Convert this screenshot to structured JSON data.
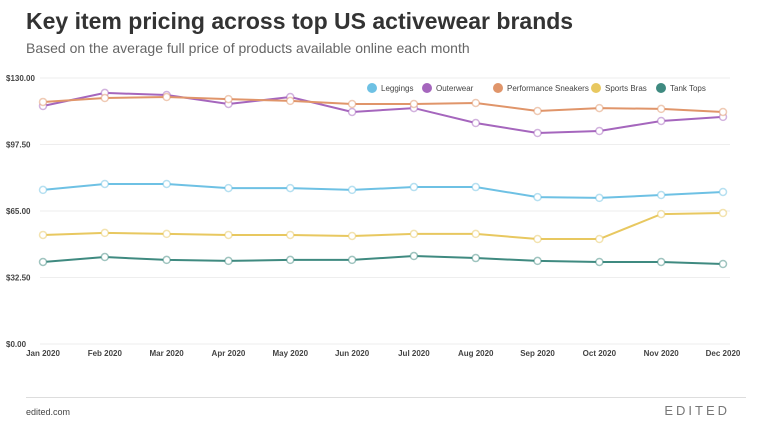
{
  "title": "Key item pricing across top US activewear brands",
  "subtitle": "Based on the average full price of products available online each month",
  "footer": {
    "source": "edited.com",
    "logo": "EDITED"
  },
  "chart_data": {
    "type": "line",
    "categories": [
      "Jan 2020",
      "Feb 2020",
      "Mar 2020",
      "Apr 2020",
      "May 2020",
      "Jun 2020",
      "Jul 2020",
      "Aug 2020",
      "Sep 2020",
      "Oct 2020",
      "Nov 2020",
      "Dec 2020"
    ],
    "yticks": [
      "$0.00",
      "$32.50",
      "$65.00",
      "$97.50",
      "$130.00"
    ],
    "ylim": [
      0,
      130
    ],
    "grid": true,
    "legend_position": "top-right",
    "series": [
      {
        "name": "Leggings",
        "color": "#6ec1e4",
        "values": [
          75.3,
          78.2,
          78.2,
          76.2,
          76.2,
          75.3,
          76.7,
          76.7,
          71.8,
          71.4,
          72.8,
          74.3
        ]
      },
      {
        "name": "Outerwear",
        "color": "#a566bd",
        "values": [
          116.3,
          122.7,
          121.7,
          117.3,
          120.7,
          113.4,
          115.3,
          108.0,
          103.1,
          104.1,
          109.0,
          111.0
        ]
      },
      {
        "name": "Performance Sneakers",
        "color": "#e0956a",
        "values": [
          118.3,
          120.2,
          120.7,
          119.7,
          118.8,
          117.3,
          117.3,
          117.8,
          113.9,
          115.3,
          114.9,
          113.4
        ]
      },
      {
        "name": "Sports Bras",
        "color": "#e8c860",
        "values": [
          53.3,
          54.3,
          53.8,
          53.3,
          53.3,
          52.8,
          53.8,
          53.8,
          51.3,
          51.3,
          63.5,
          64.0
        ]
      },
      {
        "name": "Tank Tops",
        "color": "#3f8a80",
        "values": [
          40.1,
          42.5,
          41.1,
          40.6,
          41.1,
          41.1,
          43.0,
          42.0,
          40.6,
          40.1,
          40.1,
          39.1
        ]
      }
    ]
  }
}
